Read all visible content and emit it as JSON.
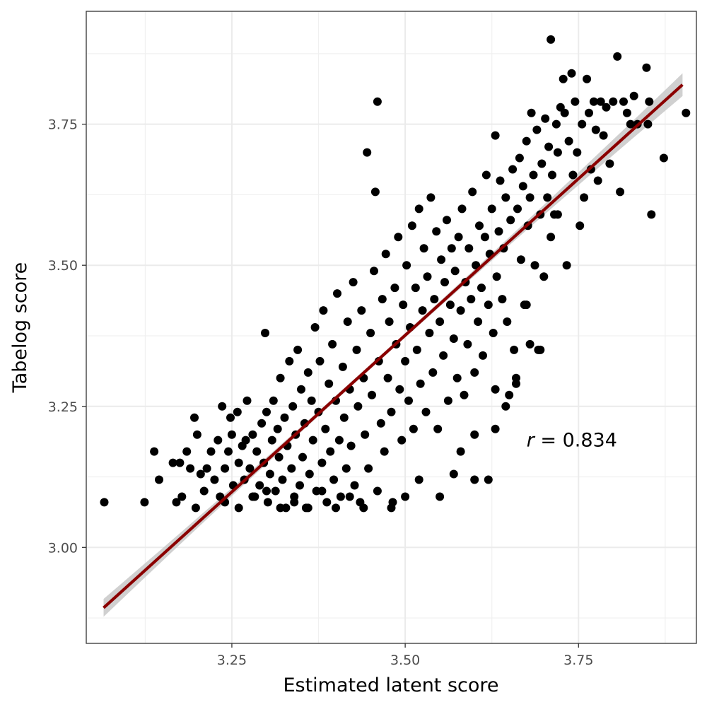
{
  "chart_data": {
    "type": "scatter",
    "xlabel": "Estimated latent score",
    "ylabel": "Tabelog score",
    "xlim": [
      3.04,
      3.92
    ],
    "ylim": [
      2.83,
      3.95
    ],
    "x_ticks": [
      3.25,
      3.5,
      3.75
    ],
    "x_tick_labels": [
      "3.25",
      "3.50",
      "3.75"
    ],
    "y_ticks": [
      3.0,
      3.25,
      3.5,
      3.75
    ],
    "y_tick_labels": [
      "3.00",
      "3.25",
      "3.50",
      "3.75"
    ],
    "grid": true,
    "theme": "bw",
    "annotation": {
      "italic": "r",
      "rest": " = 0.834"
    },
    "annotation_position": {
      "x": 3.675,
      "y": 3.19
    },
    "fit_line": {
      "x1": 3.065,
      "y1": 2.893,
      "x2": 3.9,
      "y2": 3.82,
      "color": "#8b0000",
      "band": "#c8c8c8"
    },
    "point_color": "#000000",
    "points": [
      [
        3.066,
        3.08
      ],
      [
        3.124,
        3.08
      ],
      [
        3.138,
        3.17
      ],
      [
        3.145,
        3.12
      ],
      [
        3.165,
        3.15
      ],
      [
        3.17,
        3.08
      ],
      [
        3.175,
        3.15
      ],
      [
        3.178,
        3.09
      ],
      [
        3.185,
        3.17
      ],
      [
        3.19,
        3.14
      ],
      [
        3.196,
        3.23
      ],
      [
        3.2,
        3.2
      ],
      [
        3.198,
        3.07
      ],
      [
        3.205,
        3.13
      ],
      [
        3.21,
        3.1
      ],
      [
        3.214,
        3.14
      ],
      [
        3.22,
        3.17
      ],
      [
        3.225,
        3.12
      ],
      [
        3.23,
        3.19
      ],
      [
        3.233,
        3.09
      ],
      [
        3.236,
        3.25
      ],
      [
        3.24,
        3.14
      ],
      [
        3.245,
        3.17
      ],
      [
        3.248,
        3.23
      ],
      [
        3.25,
        3.2
      ],
      [
        3.252,
        3.11
      ],
      [
        3.258,
        3.24
      ],
      [
        3.26,
        3.15
      ],
      [
        3.265,
        3.18
      ],
      [
        3.268,
        3.12
      ],
      [
        3.27,
        3.19
      ],
      [
        3.272,
        3.26
      ],
      [
        3.276,
        3.14
      ],
      [
        3.28,
        3.2
      ],
      [
        3.283,
        3.09
      ],
      [
        3.286,
        3.17
      ],
      [
        3.29,
        3.11
      ],
      [
        3.293,
        3.22
      ],
      [
        3.296,
        3.15
      ],
      [
        3.298,
        3.38
      ],
      [
        3.3,
        3.24
      ],
      [
        3.302,
        3.08
      ],
      [
        3.305,
        3.13
      ],
      [
        3.308,
        3.19
      ],
      [
        3.31,
        3.26
      ],
      [
        3.313,
        3.1
      ],
      [
        3.316,
        3.21
      ],
      [
        3.318,
        3.16
      ],
      [
        3.32,
        3.3
      ],
      [
        3.323,
        3.12
      ],
      [
        3.326,
        3.23
      ],
      [
        3.328,
        3.07
      ],
      [
        3.33,
        3.18
      ],
      [
        3.333,
        3.33
      ],
      [
        3.336,
        3.14
      ],
      [
        3.338,
        3.25
      ],
      [
        3.34,
        3.09
      ],
      [
        3.342,
        3.2
      ],
      [
        3.345,
        3.35
      ],
      [
        3.348,
        3.11
      ],
      [
        3.35,
        3.28
      ],
      [
        3.352,
        3.16
      ],
      [
        3.355,
        3.22
      ],
      [
        3.357,
        3.07
      ],
      [
        3.36,
        3.31
      ],
      [
        3.362,
        3.13
      ],
      [
        3.365,
        3.26
      ],
      [
        3.367,
        3.19
      ],
      [
        3.37,
        3.39
      ],
      [
        3.372,
        3.1
      ],
      [
        3.375,
        3.24
      ],
      [
        3.377,
        3.33
      ],
      [
        3.38,
        3.15
      ],
      [
        3.382,
        3.42
      ],
      [
        3.385,
        3.21
      ],
      [
        3.387,
        3.08
      ],
      [
        3.39,
        3.29
      ],
      [
        3.392,
        3.17
      ],
      [
        3.395,
        3.36
      ],
      [
        3.397,
        3.12
      ],
      [
        3.4,
        3.26
      ],
      [
        3.402,
        3.45
      ],
      [
        3.405,
        3.19
      ],
      [
        3.407,
        3.09
      ],
      [
        3.41,
        3.32
      ],
      [
        3.412,
        3.23
      ],
      [
        3.415,
        3.14
      ],
      [
        3.417,
        3.4
      ],
      [
        3.42,
        3.28
      ],
      [
        3.422,
        3.18
      ],
      [
        3.425,
        3.47
      ],
      [
        3.427,
        3.11
      ],
      [
        3.43,
        3.35
      ],
      [
        3.432,
        3.25
      ],
      [
        3.435,
        3.08
      ],
      [
        3.437,
        3.42
      ],
      [
        3.44,
        3.3
      ],
      [
        3.442,
        3.2
      ],
      [
        3.445,
        3.7
      ],
      [
        3.447,
        3.14
      ],
      [
        3.45,
        3.38
      ],
      [
        3.452,
        3.27
      ],
      [
        3.455,
        3.49
      ],
      [
        3.457,
        3.63
      ],
      [
        3.46,
        3.79
      ],
      [
        3.462,
        3.33
      ],
      [
        3.465,
        3.22
      ],
      [
        3.467,
        3.44
      ],
      [
        3.47,
        3.17
      ],
      [
        3.472,
        3.52
      ],
      [
        3.475,
        3.3
      ],
      [
        3.477,
        3.4
      ],
      [
        3.48,
        3.24
      ],
      [
        3.482,
        3.08
      ],
      [
        3.485,
        3.46
      ],
      [
        3.487,
        3.36
      ],
      [
        3.49,
        3.55
      ],
      [
        3.492,
        3.28
      ],
      [
        3.495,
        3.19
      ],
      [
        3.497,
        3.43
      ],
      [
        3.5,
        3.33
      ],
      [
        3.502,
        3.5
      ],
      [
        3.505,
        3.26
      ],
      [
        3.507,
        3.39
      ],
      [
        3.51,
        3.57
      ],
      [
        3.512,
        3.21
      ],
      [
        3.515,
        3.46
      ],
      [
        3.517,
        3.35
      ],
      [
        3.52,
        3.6
      ],
      [
        3.522,
        3.29
      ],
      [
        3.525,
        3.42
      ],
      [
        3.527,
        3.53
      ],
      [
        3.53,
        3.24
      ],
      [
        3.532,
        3.48
      ],
      [
        3.535,
        3.38
      ],
      [
        3.537,
        3.62
      ],
      [
        3.54,
        3.31
      ],
      [
        3.542,
        3.44
      ],
      [
        3.545,
        3.56
      ],
      [
        3.547,
        3.21
      ],
      [
        3.55,
        3.4
      ],
      [
        3.552,
        3.51
      ],
      [
        3.555,
        3.34
      ],
      [
        3.557,
        3.47
      ],
      [
        3.56,
        3.58
      ],
      [
        3.562,
        3.26
      ],
      [
        3.565,
        3.43
      ],
      [
        3.567,
        3.53
      ],
      [
        3.57,
        3.37
      ],
      [
        3.572,
        3.49
      ],
      [
        3.575,
        3.3
      ],
      [
        3.577,
        3.55
      ],
      [
        3.58,
        3.42
      ],
      [
        3.582,
        3.6
      ],
      [
        3.585,
        3.27
      ],
      [
        3.587,
        3.47
      ],
      [
        3.59,
        3.36
      ],
      [
        3.592,
        3.53
      ],
      [
        3.595,
        3.44
      ],
      [
        3.597,
        3.63
      ],
      [
        3.6,
        3.31
      ],
      [
        3.602,
        3.5
      ],
      [
        3.605,
        3.4
      ],
      [
        3.607,
        3.57
      ],
      [
        3.61,
        3.46
      ],
      [
        3.612,
        3.34
      ],
      [
        3.615,
        3.55
      ],
      [
        3.617,
        3.66
      ],
      [
        3.62,
        3.43
      ],
      [
        3.622,
        3.52
      ],
      [
        3.625,
        3.6
      ],
      [
        3.627,
        3.38
      ],
      [
        3.63,
        3.73
      ],
      [
        3.632,
        3.48
      ],
      [
        3.635,
        3.56
      ],
      [
        3.637,
        3.65
      ],
      [
        3.64,
        3.44
      ],
      [
        3.642,
        3.53
      ],
      [
        3.645,
        3.62
      ],
      [
        3.647,
        3.4
      ],
      [
        3.65,
        3.27
      ],
      [
        3.652,
        3.58
      ],
      [
        3.655,
        3.67
      ],
      [
        3.657,
        3.35
      ],
      [
        3.66,
        3.29
      ],
      [
        3.662,
        3.6
      ],
      [
        3.665,
        3.69
      ],
      [
        3.667,
        3.51
      ],
      [
        3.67,
        3.64
      ],
      [
        3.672,
        3.43
      ],
      [
        3.675,
        3.72
      ],
      [
        3.677,
        3.57
      ],
      [
        3.68,
        3.62
      ],
      [
        3.682,
        3.77
      ],
      [
        3.685,
        3.66
      ],
      [
        3.687,
        3.5
      ],
      [
        3.69,
        3.74
      ],
      [
        3.692,
        3.35
      ],
      [
        3.695,
        3.59
      ],
      [
        3.697,
        3.68
      ],
      [
        3.7,
        3.48
      ],
      [
        3.702,
        3.76
      ],
      [
        3.705,
        3.62
      ],
      [
        3.707,
        3.71
      ],
      [
        3.71,
        3.9
      ],
      [
        3.712,
        3.66
      ],
      [
        3.715,
        3.59
      ],
      [
        3.718,
        3.75
      ],
      [
        3.72,
        3.7
      ],
      [
        3.724,
        3.78
      ],
      [
        3.728,
        3.83
      ],
      [
        3.73,
        3.77
      ],
      [
        3.733,
        3.5
      ],
      [
        3.736,
        3.72
      ],
      [
        3.74,
        3.84
      ],
      [
        3.742,
        3.66
      ],
      [
        3.745,
        3.79
      ],
      [
        3.748,
        3.7
      ],
      [
        3.752,
        3.57
      ],
      [
        3.755,
        3.75
      ],
      [
        3.758,
        3.62
      ],
      [
        3.762,
        3.83
      ],
      [
        3.765,
        3.77
      ],
      [
        3.768,
        3.67
      ],
      [
        3.772,
        3.79
      ],
      [
        3.775,
        3.74
      ],
      [
        3.778,
        3.65
      ],
      [
        3.782,
        3.79
      ],
      [
        3.786,
        3.73
      ],
      [
        3.79,
        3.78
      ],
      [
        3.795,
        3.68
      ],
      [
        3.8,
        3.79
      ],
      [
        3.806,
        3.87
      ],
      [
        3.81,
        3.63
      ],
      [
        3.815,
        3.79
      ],
      [
        3.82,
        3.77
      ],
      [
        3.825,
        3.75
      ],
      [
        3.83,
        3.8
      ],
      [
        3.835,
        3.75
      ],
      [
        3.848,
        3.85
      ],
      [
        3.85,
        3.75
      ],
      [
        3.852,
        3.79
      ],
      [
        3.855,
        3.59
      ],
      [
        3.873,
        3.69
      ],
      [
        3.905,
        3.77
      ],
      [
        3.24,
        3.08
      ],
      [
        3.26,
        3.07
      ],
      [
        3.28,
        3.09
      ],
      [
        3.3,
        3.1
      ],
      [
        3.32,
        3.07
      ],
      [
        3.34,
        3.08
      ],
      [
        3.36,
        3.07
      ],
      [
        3.38,
        3.1
      ],
      [
        3.4,
        3.07
      ],
      [
        3.42,
        3.09
      ],
      [
        3.44,
        3.07
      ],
      [
        3.46,
        3.1
      ],
      [
        3.48,
        3.07
      ],
      [
        3.5,
        3.09
      ],
      [
        3.52,
        3.12
      ],
      [
        3.55,
        3.09
      ],
      [
        3.57,
        3.13
      ],
      [
        3.6,
        3.12
      ],
      [
        3.62,
        3.12
      ],
      [
        3.58,
        3.17
      ],
      [
        3.6,
        3.2
      ],
      [
        3.63,
        3.21
      ],
      [
        3.645,
        3.25
      ],
      [
        3.63,
        3.28
      ],
      [
        3.66,
        3.3
      ],
      [
        3.68,
        3.36
      ],
      [
        3.695,
        3.35
      ],
      [
        3.675,
        3.43
      ],
      [
        3.71,
        3.55
      ],
      [
        3.72,
        3.59
      ]
    ]
  }
}
